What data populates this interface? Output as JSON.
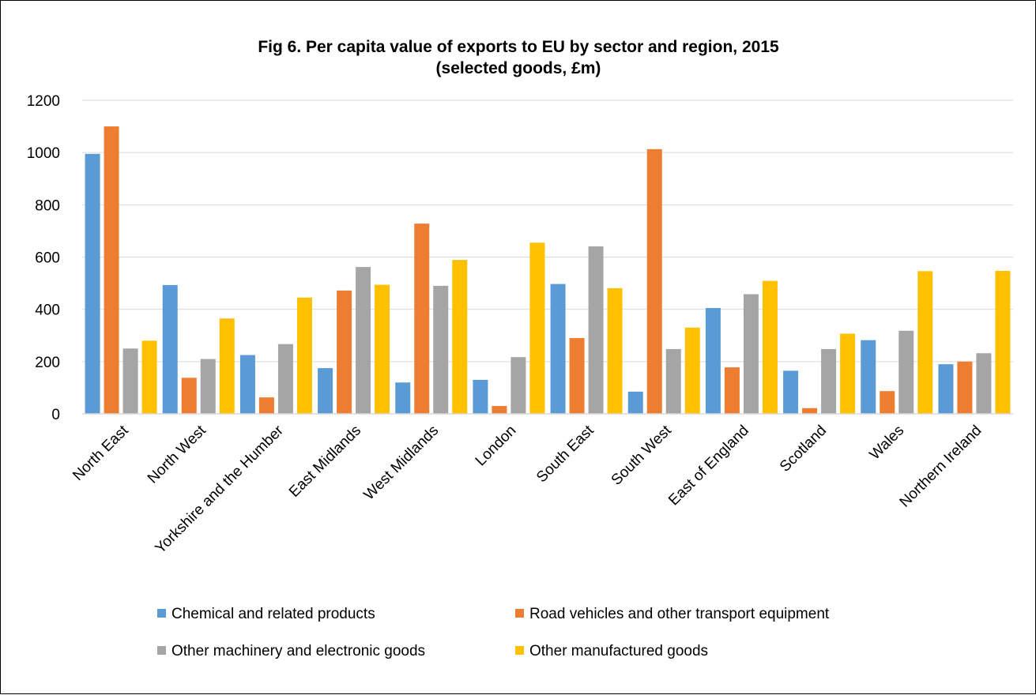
{
  "chart_data": {
    "type": "bar",
    "title": "Fig 6. Per capita value of exports to EU by sector and region, 2015",
    "subtitle": "(selected goods, £m)",
    "xlabel": "",
    "ylabel": "",
    "ylim": [
      0,
      1200
    ],
    "yticks": [
      0,
      200,
      400,
      600,
      800,
      1000,
      1200
    ],
    "grid": true,
    "legend_position": "bottom",
    "categories": [
      "North East",
      "North West",
      "Yorkshire and the Humber",
      "East Midlands",
      "West Midlands",
      "London",
      "South East",
      "South West",
      "East of England",
      "Scotland",
      "Wales",
      "Northern Ireland"
    ],
    "series": [
      {
        "name": "Chemical and related products",
        "color": "#5B9BD5",
        "values": [
          995,
          493,
          225,
          175,
          120,
          130,
          497,
          85,
          405,
          165,
          282,
          190
        ]
      },
      {
        "name": "Road vehicles and other transport equipment",
        "color": "#ED7D31",
        "values": [
          1100,
          138,
          63,
          472,
          728,
          30,
          290,
          1013,
          178,
          22,
          87,
          200
        ]
      },
      {
        "name": "Other machinery and electronic goods",
        "color": "#A5A5A5",
        "values": [
          250,
          210,
          267,
          562,
          490,
          217,
          641,
          248,
          458,
          248,
          318,
          232
        ]
      },
      {
        "name": "Other manufactured goods",
        "color": "#FFC000",
        "values": [
          280,
          365,
          445,
          494,
          589,
          655,
          481,
          330,
          509,
          307,
          546,
          547
        ]
      }
    ]
  }
}
